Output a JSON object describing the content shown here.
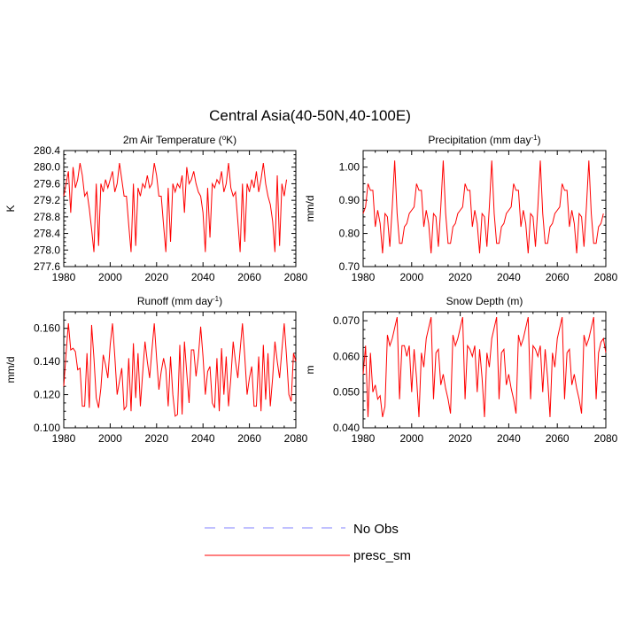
{
  "figure": {
    "title": "Central Asia(40-50N,40-100E)"
  },
  "legend": {
    "entries": [
      {
        "label": "No Obs",
        "color": "#8080ff",
        "style": "dashed"
      },
      {
        "label": "presc_sm",
        "color": "#ff0000",
        "style": "solid"
      }
    ]
  },
  "chart_data": [
    {
      "type": "line",
      "title": "2m Air Temperature",
      "title_unit": "(°K)",
      "ylabel": "K",
      "xlim": [
        1980,
        2080
      ],
      "ylim": [
        277.6,
        280.4
      ],
      "xticks": [
        1980,
        2000,
        2020,
        2040,
        2060,
        2080
      ],
      "yticks": [
        277.6,
        278.0,
        278.4,
        278.8,
        279.2,
        279.6,
        280.0,
        280.4
      ],
      "ytick_labels": [
        "277.6",
        "278.0",
        "278.4",
        "278.8",
        "279.2",
        "279.6",
        "280.0",
        "280.4"
      ],
      "series": [
        {
          "name": "presc_sm",
          "color": "#ff0000",
          "x_start": 1980,
          "x_step": 1,
          "values": [
            279.3,
            279.6,
            279.9,
            278.9,
            280.0,
            279.5,
            279.7,
            280.1,
            279.8,
            279.3,
            279.4,
            279.0,
            278.5,
            277.95,
            279.6,
            278.1,
            279.6,
            279.4,
            279.7,
            279.5,
            279.7,
            279.9,
            279.4,
            279.6,
            280.1,
            279.7,
            279.3,
            279.3,
            278.6,
            277.95,
            279.6,
            278.1,
            279.5,
            279.3,
            279.6,
            279.5,
            279.8,
            279.5,
            279.6,
            280.1,
            279.8,
            279.3,
            279.3,
            278.6,
            277.95,
            279.5,
            278.2,
            279.6,
            279.4,
            279.6,
            279.5,
            279.8,
            278.9,
            280.0,
            279.6,
            279.7,
            279.9,
            279.6,
            279.4,
            279.3,
            278.9,
            277.95,
            279.5,
            278.3,
            279.6,
            279.5,
            279.7,
            279.6,
            279.9,
            279.4,
            279.6,
            280.1,
            279.5,
            279.3,
            279.4,
            278.7,
            277.95,
            279.6,
            278.2,
            279.6,
            279.4,
            279.7,
            279.5,
            279.9,
            279.4,
            279.7,
            280.1,
            279.6,
            279.3,
            279.1,
            278.7,
            277.95,
            279.8,
            278.1,
            279.6,
            279.3,
            279.7
          ]
        }
      ]
    },
    {
      "type": "line",
      "title": "Precipitation (mm day",
      "title_sup": "-1",
      "title_close": ")",
      "ylabel": "mm/d",
      "xlim": [
        1980,
        2080
      ],
      "ylim": [
        0.7,
        1.05
      ],
      "xticks": [
        1980,
        2000,
        2020,
        2040,
        2060,
        2080
      ],
      "yticks": [
        0.7,
        0.8,
        0.9,
        1.0
      ],
      "ytick_labels": [
        "0.70",
        "0.80",
        "0.90",
        "1.00"
      ],
      "series": [
        {
          "name": "presc_sm",
          "color": "#ff0000",
          "x_start": 1980,
          "x_step": 1,
          "values": [
            0.86,
            0.88,
            0.95,
            0.93,
            0.93,
            0.82,
            0.87,
            0.83,
            0.74,
            0.86,
            0.85,
            0.76,
            0.88,
            1.02,
            0.86,
            0.77,
            0.77,
            0.82,
            0.83,
            0.86,
            0.87,
            0.88,
            0.95,
            0.93,
            0.93,
            0.82,
            0.87,
            0.83,
            0.74,
            0.86,
            0.85,
            0.76,
            0.88,
            1.02,
            0.86,
            0.77,
            0.77,
            0.82,
            0.83,
            0.86,
            0.87,
            0.88,
            0.95,
            0.93,
            0.93,
            0.82,
            0.87,
            0.83,
            0.74,
            0.86,
            0.85,
            0.76,
            0.88,
            1.02,
            0.86,
            0.77,
            0.77,
            0.82,
            0.83,
            0.86,
            0.87,
            0.88,
            0.95,
            0.93,
            0.93,
            0.82,
            0.87,
            0.83,
            0.74,
            0.86,
            0.85,
            0.76,
            0.88,
            1.02,
            0.86,
            0.77,
            0.77,
            0.82,
            0.83,
            0.86,
            0.87,
            0.88,
            0.95,
            0.93,
            0.93,
            0.82,
            0.87,
            0.83,
            0.74,
            0.86,
            0.85,
            0.76,
            0.88,
            1.02,
            0.86,
            0.77,
            0.77,
            0.82,
            0.83,
            0.86
          ]
        }
      ]
    },
    {
      "type": "line",
      "title": "Runoff (mm day",
      "title_sup": "-1",
      "title_close": ")",
      "ylabel": "mm/d",
      "xlim": [
        1980,
        2080
      ],
      "ylim": [
        0.1,
        0.17
      ],
      "xticks": [
        1980,
        2000,
        2020,
        2040,
        2060,
        2080
      ],
      "yticks": [
        0.1,
        0.12,
        0.14,
        0.16
      ],
      "ytick_labels": [
        "0.100",
        "0.120",
        "0.140",
        "0.160"
      ],
      "series": [
        {
          "name": "presc_sm",
          "color": "#ff0000",
          "x_start": 1980,
          "x_step": 1,
          "values": [
            0.125,
            0.145,
            0.163,
            0.147,
            0.148,
            0.146,
            0.135,
            0.136,
            0.113,
            0.113,
            0.145,
            0.112,
            0.162,
            0.142,
            0.118,
            0.112,
            0.124,
            0.144,
            0.138,
            0.13,
            0.15,
            0.163,
            0.143,
            0.12,
            0.128,
            0.136,
            0.111,
            0.113,
            0.142,
            0.11,
            0.151,
            0.118,
            0.145,
            0.113,
            0.133,
            0.152,
            0.14,
            0.13,
            0.147,
            0.163,
            0.142,
            0.123,
            0.134,
            0.142,
            0.135,
            0.113,
            0.143,
            0.12,
            0.107,
            0.108,
            0.15,
            0.108,
            0.152,
            0.133,
            0.115,
            0.147,
            0.147,
            0.131,
            0.143,
            0.161,
            0.143,
            0.12,
            0.134,
            0.137,
            0.115,
            0.112,
            0.142,
            0.11,
            0.148,
            0.12,
            0.143,
            0.113,
            0.13,
            0.152,
            0.14,
            0.13,
            0.147,
            0.163,
            0.143,
            0.12,
            0.13,
            0.137,
            0.113,
            0.113,
            0.143,
            0.11,
            0.15,
            0.117,
            0.145,
            0.113,
            0.13,
            0.152,
            0.14,
            0.13,
            0.147,
            0.163,
            0.143,
            0.12,
            0.116,
            0.145,
            0.14
          ]
        }
      ]
    },
    {
      "type": "line",
      "title": "Snow Depth (m)",
      "ylabel": "m",
      "xlim": [
        1980,
        2080
      ],
      "ylim": [
        0.04,
        0.0725
      ],
      "xticks": [
        1980,
        2000,
        2020,
        2040,
        2060,
        2080
      ],
      "yticks": [
        0.04,
        0.05,
        0.06,
        0.07
      ],
      "ytick_labels": [
        "0.040",
        "0.050",
        "0.060",
        "0.070"
      ],
      "series": [
        {
          "name": "presc_sm",
          "color": "#ff0000",
          "x_start": 1980,
          "x_step": 1,
          "values": [
            0.055,
            0.063,
            0.043,
            0.061,
            0.05,
            0.052,
            0.048,
            0.049,
            0.043,
            0.046,
            0.066,
            0.063,
            0.065,
            0.068,
            0.071,
            0.048,
            0.063,
            0.063,
            0.06,
            0.063,
            0.05,
            0.062,
            0.054,
            0.043,
            0.061,
            0.057,
            0.065,
            0.068,
            0.071,
            0.048,
            0.061,
            0.062,
            0.052,
            0.055,
            0.051,
            0.048,
            0.044,
            0.066,
            0.063,
            0.065,
            0.068,
            0.071,
            0.048,
            0.063,
            0.062,
            0.06,
            0.063,
            0.05,
            0.062,
            0.054,
            0.043,
            0.061,
            0.057,
            0.065,
            0.068,
            0.071,
            0.048,
            0.061,
            0.062,
            0.052,
            0.055,
            0.051,
            0.048,
            0.044,
            0.066,
            0.063,
            0.065,
            0.068,
            0.071,
            0.048,
            0.063,
            0.062,
            0.06,
            0.063,
            0.05,
            0.062,
            0.054,
            0.043,
            0.061,
            0.057,
            0.065,
            0.068,
            0.071,
            0.048,
            0.061,
            0.062,
            0.052,
            0.055,
            0.051,
            0.048,
            0.044,
            0.066,
            0.063,
            0.065,
            0.068,
            0.071,
            0.048,
            0.061,
            0.064,
            0.065,
            0.061
          ]
        }
      ]
    }
  ]
}
